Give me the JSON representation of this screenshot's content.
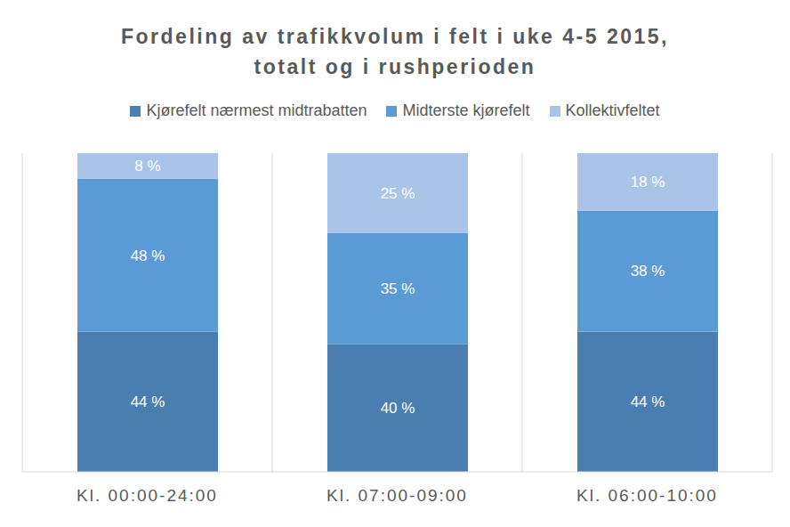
{
  "chart_data": {
    "type": "bar",
    "title": "Fordeling av trafikkvolum i felt i uke 4-5 2015, totalt og i rushperioden",
    "categories": [
      "Kl. 00:00-24:00",
      "Kl. 07:00-09:00",
      "Kl. 06:00-10:00"
    ],
    "series": [
      {
        "name": "Kjørefelt nærmest midtrabatten",
        "color": "#4a7eb0",
        "values": [
          44,
          40,
          44
        ],
        "value_labels": [
          "44 %",
          "40 %",
          "44 %"
        ]
      },
      {
        "name": "Midterste kjørefelt",
        "color": "#5b9bd5",
        "values": [
          48,
          35,
          38
        ],
        "value_labels": [
          "48 %",
          "35 %",
          "38 %"
        ]
      },
      {
        "name": "Kollektivfeltet",
        "color": "#a9c4e7",
        "values": [
          8,
          25,
          18
        ],
        "value_labels": [
          "8 %",
          "25 %",
          "18 %"
        ]
      }
    ],
    "ylim": [
      0,
      100
    ],
    "stacked": true,
    "data_labels": true,
    "grid": true,
    "tick_labels": "x"
  }
}
